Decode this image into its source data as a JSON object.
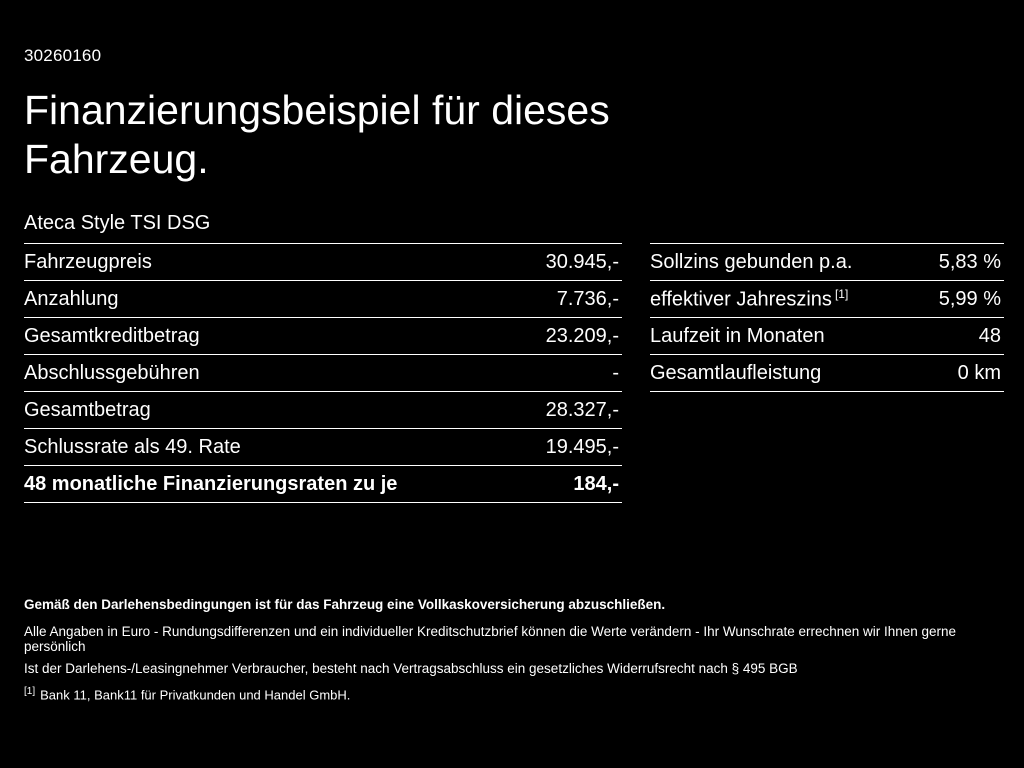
{
  "page": {
    "id_number": "30260160",
    "title": "Finanzierungsbeispiel für dieses Fahrzeug.",
    "subtitle": "Ateca Style TSI DSG"
  },
  "left_table": {
    "rows": [
      {
        "label": "Fahrzeugpreis",
        "value": "30.945,-"
      },
      {
        "label": "Anzahlung",
        "value": "7.736,-"
      },
      {
        "label": "Gesamtkreditbetrag",
        "value": "23.209,-"
      },
      {
        "label": "Abschlussgebühren",
        "value": "-"
      },
      {
        "label": "Gesamtbetrag",
        "value": "28.327,-"
      },
      {
        "label": "Schlussrate als 49. Rate",
        "value": "19.495,-"
      },
      {
        "label": "48 monatliche Finanzierungsraten zu je",
        "value": "184,-"
      }
    ]
  },
  "right_table": {
    "rows": [
      {
        "label": "Sollzins gebunden p.a.",
        "value": "5,83 %"
      },
      {
        "label": "effektiver Jahreszins",
        "sup": "[1]",
        "value": "5,99 %"
      },
      {
        "label": "Laufzeit in Monaten",
        "value": "48"
      },
      {
        "label": "Gesamtlaufleistung",
        "value": "0 km"
      }
    ]
  },
  "footer": {
    "insurance_note": "Gemäß den Darlehensbedingungen ist für das Fahrzeug eine Vollkaskoversicherung abzuschließen.",
    "disclaimer1": "Alle Angaben in Euro - Rundungsdifferenzen und ein individueller Kreditschutzbrief können die Werte verändern - Ihr Wunschrate errechnen wir Ihnen gerne persönlich",
    "disclaimer2": "Ist der Darlehens-/Leasingnehmer Verbraucher, besteht nach Vertragsabschluss ein gesetzliches Widerrufsrecht nach § 495 BGB",
    "footnote_marker": "[1]",
    "footnote_text": "Bank 11, Bank11 für Privatkunden und Handel GmbH."
  }
}
